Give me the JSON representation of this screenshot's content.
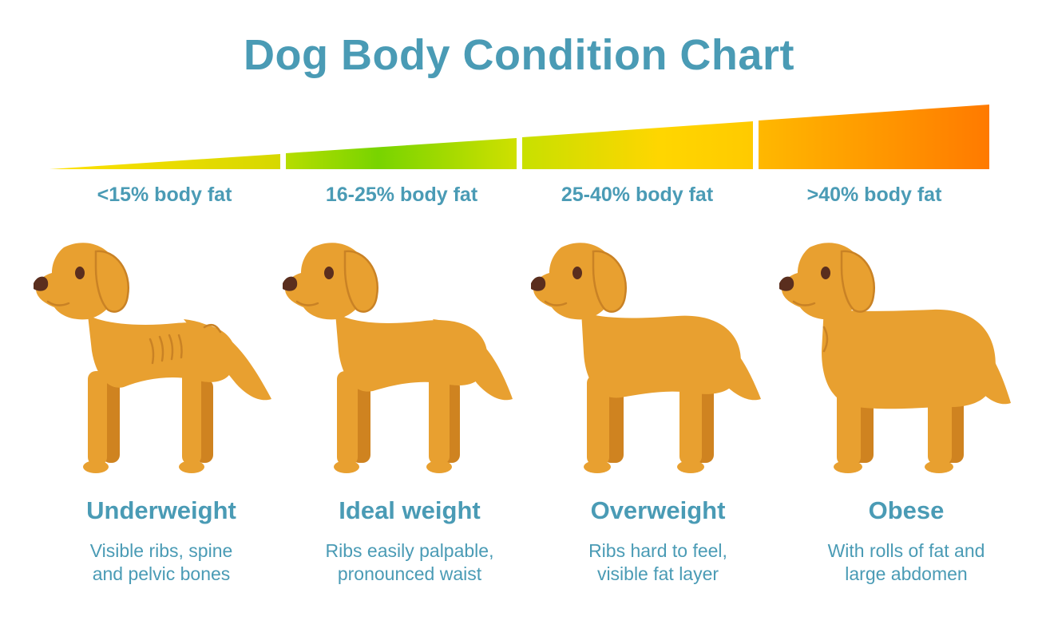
{
  "title": "Dog Body Condition Chart",
  "colors": {
    "text": "#4a9bb5",
    "dog_body": "#e8a030",
    "dog_shadow": "#cf8320",
    "dog_line": "#c98225",
    "nose": "#5a2e1e",
    "gradient": [
      "#f2d200",
      "#7ad400",
      "#ffd400",
      "#ff7a00"
    ]
  },
  "categories": [
    {
      "fat": "<15% body fat",
      "name": "Underweight",
      "desc": [
        "Visible ribs, spine",
        "and pelvic bones"
      ]
    },
    {
      "fat": "16-25% body fat",
      "name": "Ideal weight",
      "desc": [
        "Ribs easily palpable,",
        "pronounced waist"
      ]
    },
    {
      "fat": "25-40% body fat",
      "name": "Overweight",
      "desc": [
        "Ribs hard to feel,",
        "visible fat layer"
      ]
    },
    {
      "fat": ">40% body fat",
      "name": "Obese",
      "desc": [
        "With rolls of fat and",
        "large abdomen"
      ]
    }
  ]
}
